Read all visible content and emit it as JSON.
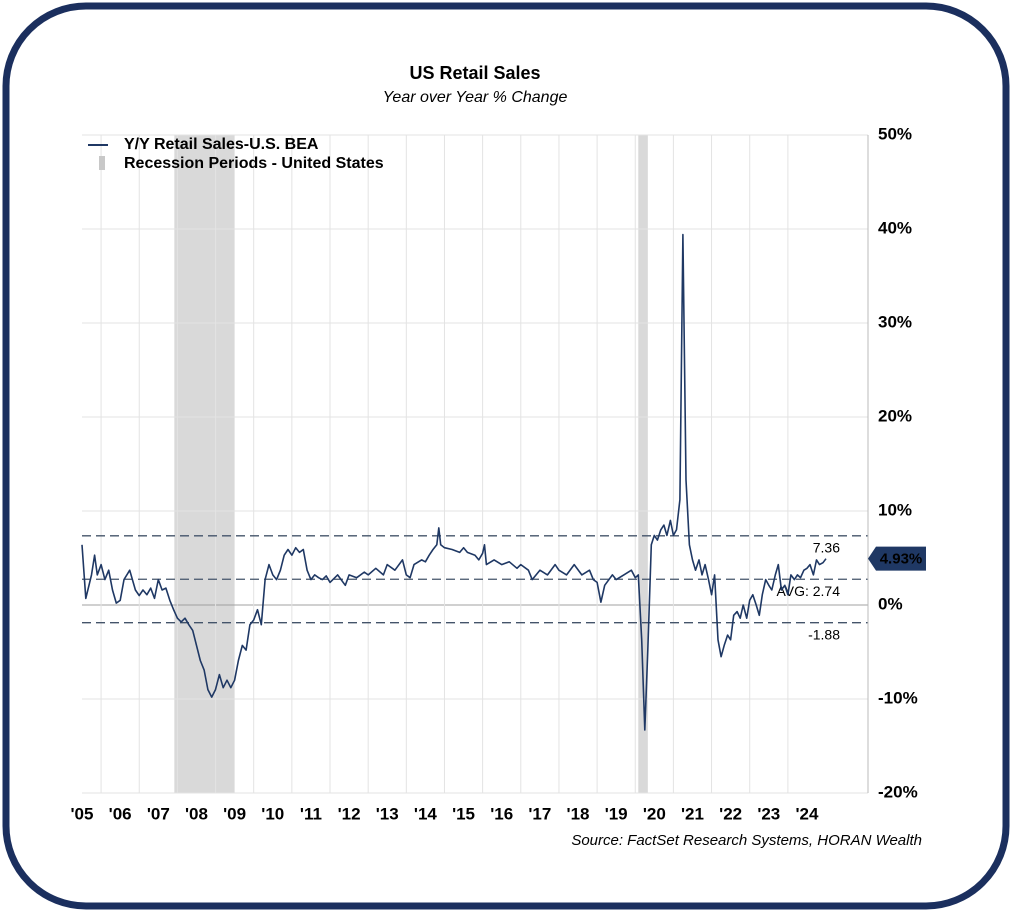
{
  "chart_data": {
    "type": "line",
    "title": "US Retail Sales",
    "subtitle": "Year over Year % Change",
    "source": "Source: FactSet Research Systems, HORAN Wealth",
    "x": [
      2005.5,
      2005.6,
      2005.75,
      2005.83,
      2005.9,
      2006.0,
      2006.1,
      2006.2,
      2006.3,
      2006.4,
      2006.5,
      2006.6,
      2006.75,
      2006.9,
      2007.0,
      2007.1,
      2007.2,
      2007.3,
      2007.4,
      2007.5,
      2007.6,
      2007.7,
      2007.8,
      2007.9,
      2008.0,
      2008.1,
      2008.2,
      2008.3,
      2008.4,
      2008.5,
      2008.6,
      2008.7,
      2008.8,
      2008.9,
      2009.0,
      2009.1,
      2009.2,
      2009.3,
      2009.4,
      2009.5,
      2009.6,
      2009.7,
      2009.8,
      2009.9,
      2010.0,
      2010.1,
      2010.2,
      2010.3,
      2010.4,
      2010.5,
      2010.6,
      2010.7,
      2010.8,
      2010.9,
      2011.0,
      2011.1,
      2011.2,
      2011.3,
      2011.4,
      2011.5,
      2011.6,
      2011.7,
      2011.8,
      2011.9,
      2012.0,
      2012.2,
      2012.4,
      2012.5,
      2012.7,
      2012.9,
      2013.0,
      2013.2,
      2013.4,
      2013.5,
      2013.7,
      2013.9,
      2014.0,
      2014.1,
      2014.2,
      2014.4,
      2014.5,
      2014.6,
      2014.7,
      2014.8,
      2014.85,
      2014.9,
      2015.0,
      2015.2,
      2015.4,
      2015.5,
      2015.6,
      2015.8,
      2015.9,
      2016.0,
      2016.05,
      2016.1,
      2016.3,
      2016.5,
      2016.7,
      2016.9,
      2017.0,
      2017.2,
      2017.3,
      2017.5,
      2017.7,
      2017.9,
      2018.0,
      2018.2,
      2018.4,
      2018.6,
      2018.8,
      2018.9,
      2019.0,
      2019.1,
      2019.2,
      2019.4,
      2019.5,
      2019.7,
      2019.9,
      2020.0,
      2020.08,
      2020.17,
      2020.25,
      2020.33,
      2020.42,
      2020.5,
      2020.58,
      2020.67,
      2020.75,
      2020.83,
      2020.92,
      2021.0,
      2021.08,
      2021.17,
      2021.25,
      2021.33,
      2021.42,
      2021.5,
      2021.58,
      2021.67,
      2021.75,
      2021.83,
      2021.92,
      2022.0,
      2022.08,
      2022.17,
      2022.25,
      2022.33,
      2022.42,
      2022.5,
      2022.58,
      2022.67,
      2022.75,
      2022.83,
      2022.92,
      2023.0,
      2023.08,
      2023.17,
      2023.25,
      2023.33,
      2023.42,
      2023.5,
      2023.58,
      2023.67,
      2023.75,
      2023.83,
      2023.92,
      2024.0,
      2024.08,
      2024.17,
      2024.25,
      2024.33,
      2024.42,
      2024.5,
      2024.58,
      2024.67,
      2024.75,
      2024.83,
      2024.92,
      2025.0
    ],
    "series": [
      {
        "name": "Y/Y Retail Sales-U.S. BEA",
        "color": "#1f3864",
        "values": [
          6.4,
          0.7,
          3.2,
          5.3,
          3.2,
          4.3,
          2.7,
          3.7,
          1.6,
          0.2,
          0.5,
          2.7,
          3.7,
          1.6,
          1.0,
          1.6,
          1.1,
          1.8,
          0.7,
          2.7,
          1.6,
          1.8,
          0.5,
          -0.5,
          -1.4,
          -1.8,
          -1.4,
          -2.1,
          -2.7,
          -4.3,
          -5.9,
          -6.9,
          -9.0,
          -9.8,
          -9.0,
          -7.4,
          -8.8,
          -8.0,
          -8.8,
          -8.0,
          -5.9,
          -4.3,
          -4.8,
          -2.1,
          -1.6,
          -0.5,
          -2.1,
          2.7,
          4.3,
          3.2,
          2.7,
          3.7,
          5.3,
          5.9,
          5.3,
          6.1,
          5.6,
          5.9,
          3.7,
          2.7,
          3.2,
          2.9,
          2.7,
          3.1,
          2.4,
          3.2,
          2.1,
          3.2,
          2.9,
          3.5,
          3.2,
          3.9,
          3.2,
          4.3,
          3.7,
          4.8,
          3.2,
          2.9,
          4.3,
          4.8,
          4.6,
          5.3,
          5.9,
          6.4,
          8.2,
          6.4,
          6.1,
          5.9,
          5.6,
          6.1,
          5.6,
          5.3,
          4.8,
          5.5,
          6.4,
          4.3,
          4.8,
          4.3,
          4.6,
          3.9,
          4.3,
          3.7,
          2.7,
          3.7,
          3.2,
          4.3,
          3.7,
          3.2,
          4.3,
          3.2,
          3.7,
          2.7,
          2.4,
          0.3,
          2.1,
          3.2,
          2.7,
          3.2,
          3.7,
          2.9,
          3.2,
          -3.7,
          -13.3,
          -4.8,
          6.4,
          7.4,
          6.9,
          8.0,
          8.5,
          7.4,
          9.0,
          7.4,
          8.0,
          11.2,
          39.4,
          13.3,
          6.4,
          4.8,
          3.7,
          4.8,
          3.2,
          4.3,
          2.7,
          1.1,
          3.2,
          -3.7,
          -5.5,
          -4.3,
          -3.2,
          -3.7,
          -1.1,
          -0.7,
          -1.4,
          0,
          -1.4,
          0.5,
          1.1,
          0,
          -1.1,
          1.1,
          2.7,
          2.1,
          1.6,
          3.2,
          4.3,
          1.6,
          2.1,
          1.1,
          3.2,
          2.7,
          3.2,
          2.9,
          3.7,
          3.9,
          4.3,
          3.2,
          4.8,
          4.3,
          4.5,
          4.93
        ]
      }
    ],
    "recessions": {
      "name": "Recession Periods - United States",
      "color": "#d9d9d9",
      "periods": [
        {
          "start": 2007.92,
          "end": 2009.5
        },
        {
          "start": 2020.08,
          "end": 2020.33
        }
      ]
    },
    "reference_lines": [
      {
        "value": 7.36,
        "label": "7.36"
      },
      {
        "value": 2.74,
        "label": "AVG: 2.74"
      },
      {
        "value": -1.88,
        "label": "-1.88"
      }
    ],
    "last_value": {
      "value": 4.93,
      "label": "4.93%"
    },
    "xlim": [
      2005.5,
      2026.1
    ],
    "xticks": [
      {
        "value": 2005,
        "label": "'05"
      },
      {
        "value": 2006,
        "label": "'06"
      },
      {
        "value": 2007,
        "label": "'07"
      },
      {
        "value": 2008,
        "label": "'08"
      },
      {
        "value": 2009,
        "label": "'09"
      },
      {
        "value": 2010,
        "label": "'10"
      },
      {
        "value": 2011,
        "label": "'11"
      },
      {
        "value": 2012,
        "label": "'12"
      },
      {
        "value": 2013,
        "label": "'13"
      },
      {
        "value": 2014,
        "label": "'14"
      },
      {
        "value": 2015,
        "label": "'15"
      },
      {
        "value": 2016,
        "label": "'16"
      },
      {
        "value": 2017,
        "label": "'17"
      },
      {
        "value": 2018,
        "label": "'18"
      },
      {
        "value": 2019,
        "label": "'19"
      },
      {
        "value": 2020,
        "label": "'20"
      },
      {
        "value": 2021,
        "label": "'21"
      },
      {
        "value": 2022,
        "label": "'22"
      },
      {
        "value": 2023,
        "label": "'23"
      },
      {
        "value": 2024,
        "label": "'24"
      }
    ],
    "ylim": [
      -20,
      50
    ],
    "yticks": [
      {
        "value": -20,
        "label": "-20%"
      },
      {
        "value": -10,
        "label": "-10%"
      },
      {
        "value": 0,
        "label": "0%"
      },
      {
        "value": 10,
        "label": "10%"
      },
      {
        "value": 20,
        "label": "20%"
      },
      {
        "value": 30,
        "label": "30%"
      },
      {
        "value": 40,
        "label": "40%"
      },
      {
        "value": 50,
        "label": "50%"
      }
    ],
    "grid": true,
    "legend": "top-left"
  }
}
